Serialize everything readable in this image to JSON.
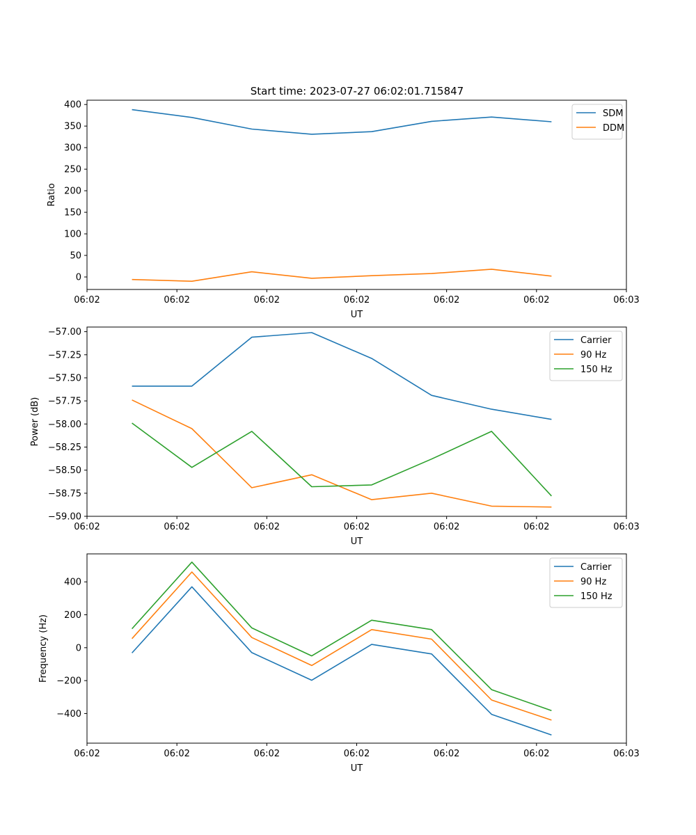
{
  "figure_title": "Start time: 2023-07-27 06:02:01.715847",
  "colors": {
    "blue": "#1f77b4",
    "orange": "#ff7f0e",
    "green": "#2ca02c"
  },
  "chart_data": [
    {
      "type": "line",
      "ylabel": "Ratio",
      "xlabel": "UT",
      "x": [
        1,
        2,
        3,
        4,
        5,
        6,
        7,
        8
      ],
      "xlim": [
        0.25,
        9.25
      ],
      "x_ticks": [
        0.25,
        1.75,
        3.25,
        4.75,
        6.25,
        7.75,
        9.25
      ],
      "x_tick_labels": [
        "06:02",
        "06:02",
        "06:02",
        "06:02",
        "06:02",
        "06:02",
        "06:03"
      ],
      "ylim": [
        -29,
        410
      ],
      "y_ticks": [
        0,
        50,
        100,
        150,
        200,
        250,
        300,
        350,
        400
      ],
      "y_tick_labels": [
        "0",
        "50",
        "100",
        "150",
        "200",
        "250",
        "300",
        "350",
        "400"
      ],
      "legend": "top-right",
      "series": [
        {
          "name": "SDM",
          "color": "#1f77b4",
          "values": [
            388,
            370,
            343,
            331,
            337,
            361,
            371,
            360
          ]
        },
        {
          "name": "DDM",
          "color": "#ff7f0e",
          "values": [
            -6,
            -10,
            12,
            -3,
            3,
            8,
            18,
            2
          ]
        }
      ]
    },
    {
      "type": "line",
      "ylabel": "Power (dB)",
      "xlabel": "UT",
      "x": [
        1,
        2,
        3,
        4,
        5,
        6,
        7,
        8
      ],
      "xlim": [
        0.25,
        9.25
      ],
      "x_ticks": [
        0.25,
        1.75,
        3.25,
        4.75,
        6.25,
        7.75,
        9.25
      ],
      "x_tick_labels": [
        "06:02",
        "06:02",
        "06:02",
        "06:02",
        "06:02",
        "06:02",
        "06:03"
      ],
      "ylim": [
        -59.0,
        -56.95
      ],
      "y_ticks": [
        -59.0,
        -58.75,
        -58.5,
        -58.25,
        -58.0,
        -57.75,
        -57.5,
        -57.25,
        -57.0
      ],
      "y_tick_labels": [
        "−59.00",
        "−58.75",
        "−58.50",
        "−58.25",
        "−58.00",
        "−57.75",
        "−57.50",
        "−57.25",
        "−57.00"
      ],
      "legend": "top-right",
      "series": [
        {
          "name": "Carrier",
          "color": "#1f77b4",
          "values": [
            -57.59,
            -57.59,
            -57.06,
            -57.01,
            -57.29,
            -57.69,
            -57.84,
            -57.95
          ]
        },
        {
          "name": "90 Hz",
          "color": "#ff7f0e",
          "values": [
            -57.74,
            -58.05,
            -58.69,
            -58.55,
            -58.82,
            -58.75,
            -58.89,
            -58.9
          ]
        },
        {
          "name": "150 Hz",
          "color": "#2ca02c",
          "values": [
            -57.99,
            -58.47,
            -58.08,
            -58.68,
            -58.66,
            -58.38,
            -58.08,
            -58.78
          ]
        }
      ]
    },
    {
      "type": "line",
      "ylabel": "Frequency (Hz)",
      "xlabel": "UT",
      "x": [
        1,
        2,
        3,
        4,
        5,
        6,
        7,
        8
      ],
      "xlim": [
        0.25,
        9.25
      ],
      "x_ticks": [
        0.25,
        1.75,
        3.25,
        4.75,
        6.25,
        7.75,
        9.25
      ],
      "x_tick_labels": [
        "06:02",
        "06:02",
        "06:02",
        "06:02",
        "06:02",
        "06:02",
        "06:03"
      ],
      "ylim": [
        -580,
        570
      ],
      "y_ticks": [
        -400,
        -200,
        0,
        200,
        400
      ],
      "y_tick_labels": [
        "−400",
        "−200",
        "0",
        "200",
        "400"
      ],
      "legend": "top-right",
      "series": [
        {
          "name": "Carrier",
          "color": "#1f77b4",
          "values": [
            -32,
            370,
            -30,
            -198,
            20,
            -38,
            -405,
            -530
          ]
        },
        {
          "name": "90 Hz",
          "color": "#ff7f0e",
          "values": [
            55,
            460,
            62,
            -108,
            110,
            52,
            -318,
            -440
          ]
        },
        {
          "name": "150 Hz",
          "color": "#2ca02c",
          "values": [
            115,
            520,
            120,
            -50,
            167,
            110,
            -255,
            -382
          ]
        }
      ]
    }
  ]
}
